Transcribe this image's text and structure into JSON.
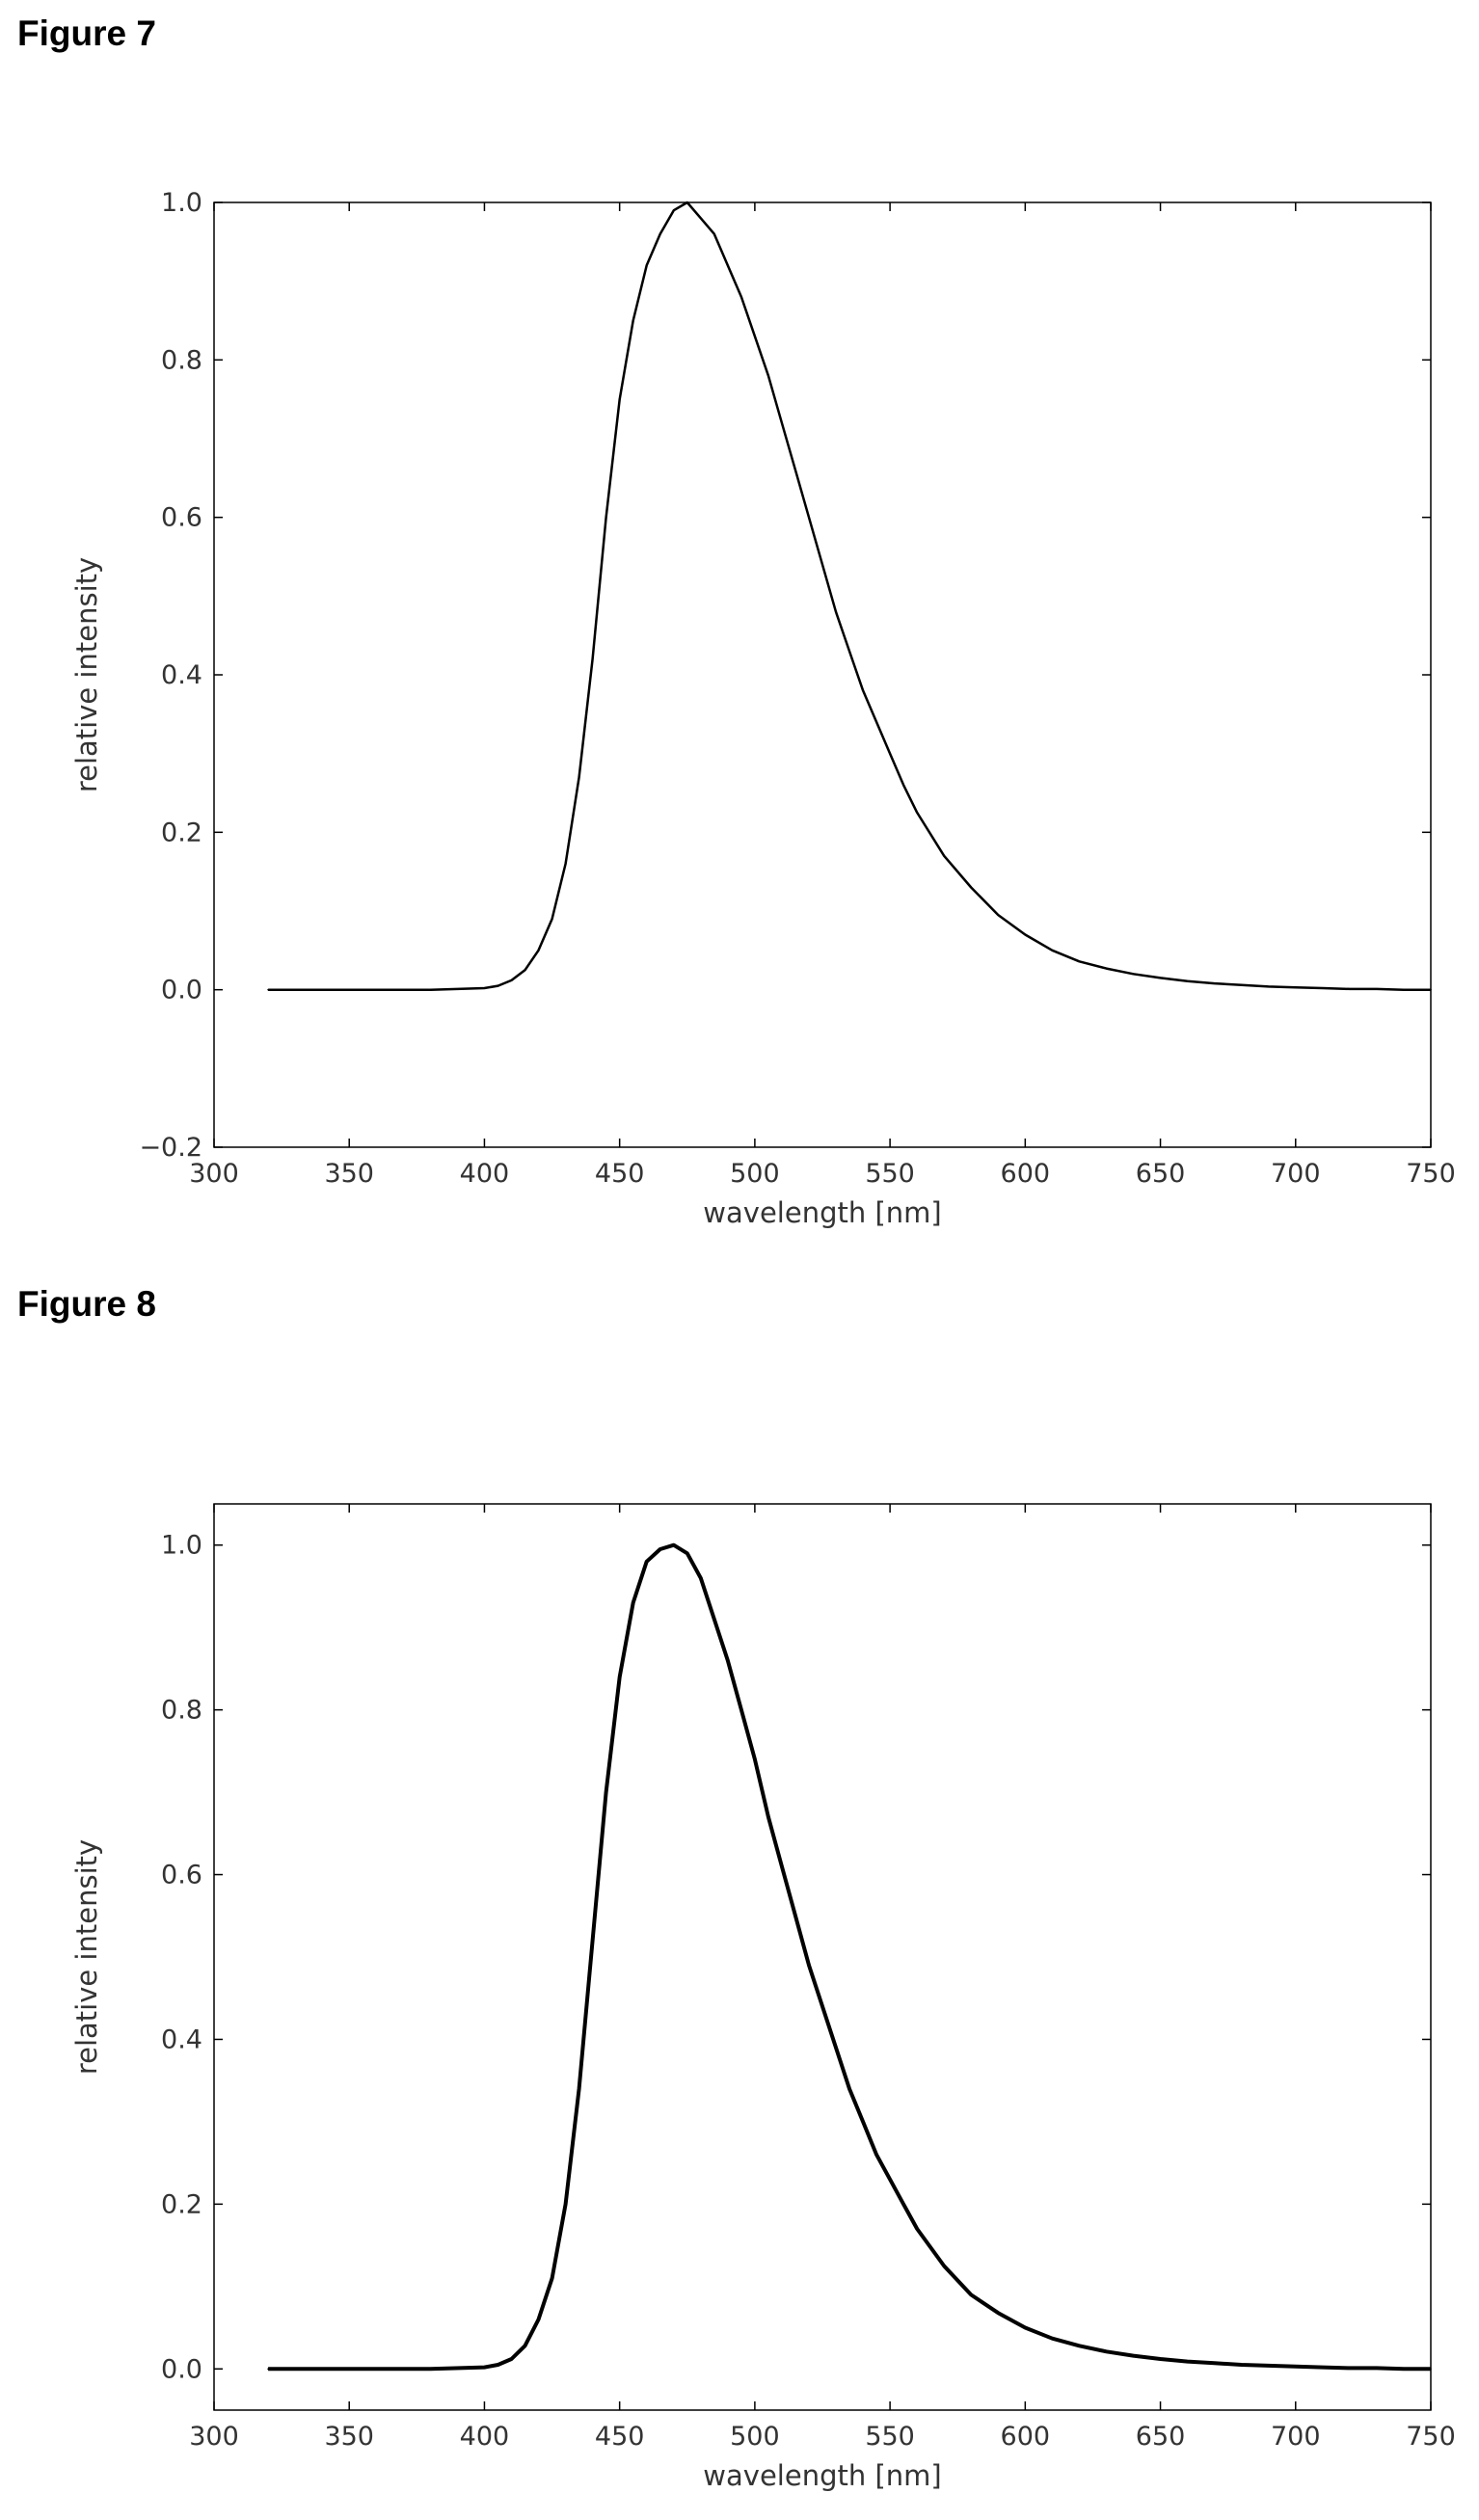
{
  "figures": [
    {
      "label": "Figure 7"
    },
    {
      "label": "Figure 8"
    }
  ],
  "chart_data": [
    {
      "type": "line",
      "title": "",
      "xlabel": "wavelength [nm]",
      "ylabel": "relative intensity",
      "xlim": [
        300,
        750
      ],
      "ylim": [
        -0.2,
        1.0
      ],
      "xticks": [
        "300",
        "350",
        "400",
        "450",
        "500",
        "550",
        "600",
        "650",
        "700",
        "750"
      ],
      "yticks": [
        "−0.2",
        "0.0",
        "0.2",
        "0.4",
        "0.6",
        "0.8",
        "1.0"
      ],
      "grid": false,
      "line_color": "#000000",
      "x": [
        320,
        350,
        380,
        400,
        405,
        410,
        415,
        420,
        425,
        430,
        435,
        440,
        445,
        450,
        455,
        460,
        465,
        470,
        475,
        480,
        485,
        490,
        495,
        500,
        505,
        510,
        515,
        520,
        525,
        530,
        535,
        540,
        545,
        550,
        555,
        560,
        570,
        580,
        590,
        600,
        610,
        620,
        630,
        640,
        650,
        660,
        670,
        680,
        690,
        700,
        710,
        720,
        730,
        740,
        750
      ],
      "y": [
        0.0,
        0.0,
        0.0,
        0.002,
        0.005,
        0.012,
        0.025,
        0.05,
        0.09,
        0.16,
        0.27,
        0.42,
        0.6,
        0.75,
        0.85,
        0.92,
        0.96,
        0.99,
        1.0,
        0.98,
        0.96,
        0.92,
        0.88,
        0.83,
        0.78,
        0.72,
        0.66,
        0.6,
        0.54,
        0.48,
        0.43,
        0.38,
        0.34,
        0.3,
        0.26,
        0.225,
        0.17,
        0.13,
        0.095,
        0.07,
        0.05,
        0.036,
        0.027,
        0.02,
        0.015,
        0.011,
        0.008,
        0.006,
        0.004,
        0.003,
        0.002,
        0.001,
        0.001,
        0.0,
        0.0
      ]
    },
    {
      "type": "line",
      "title": "",
      "xlabel": "wavelength [nm]",
      "ylabel": "relative intensity",
      "xlim": [
        300,
        750
      ],
      "ylim": [
        -0.05,
        1.05
      ],
      "xticks": [
        "300",
        "350",
        "400",
        "450",
        "500",
        "550",
        "600",
        "650",
        "700",
        "750"
      ],
      "yticks": [
        "0.0",
        "0.2",
        "0.4",
        "0.6",
        "0.8",
        "1.0"
      ],
      "grid": false,
      "line_color": "#000000",
      "x": [
        320,
        350,
        380,
        400,
        405,
        410,
        415,
        420,
        425,
        430,
        435,
        440,
        445,
        450,
        455,
        460,
        465,
        470,
        475,
        480,
        485,
        490,
        495,
        500,
        505,
        510,
        515,
        520,
        525,
        530,
        535,
        540,
        545,
        550,
        555,
        560,
        570,
        580,
        590,
        600,
        610,
        620,
        630,
        640,
        650,
        660,
        670,
        680,
        690,
        700,
        710,
        720,
        730,
        740,
        750
      ],
      "y": [
        0.0,
        0.0,
        0.0,
        0.002,
        0.005,
        0.012,
        0.028,
        0.06,
        0.11,
        0.2,
        0.34,
        0.52,
        0.7,
        0.84,
        0.93,
        0.98,
        0.995,
        1.0,
        0.99,
        0.96,
        0.91,
        0.86,
        0.8,
        0.74,
        0.67,
        0.61,
        0.55,
        0.49,
        0.44,
        0.39,
        0.34,
        0.3,
        0.26,
        0.23,
        0.2,
        0.17,
        0.125,
        0.09,
        0.068,
        0.05,
        0.037,
        0.028,
        0.021,
        0.016,
        0.012,
        0.009,
        0.007,
        0.005,
        0.004,
        0.003,
        0.002,
        0.001,
        0.001,
        0.0,
        0.0
      ]
    }
  ]
}
